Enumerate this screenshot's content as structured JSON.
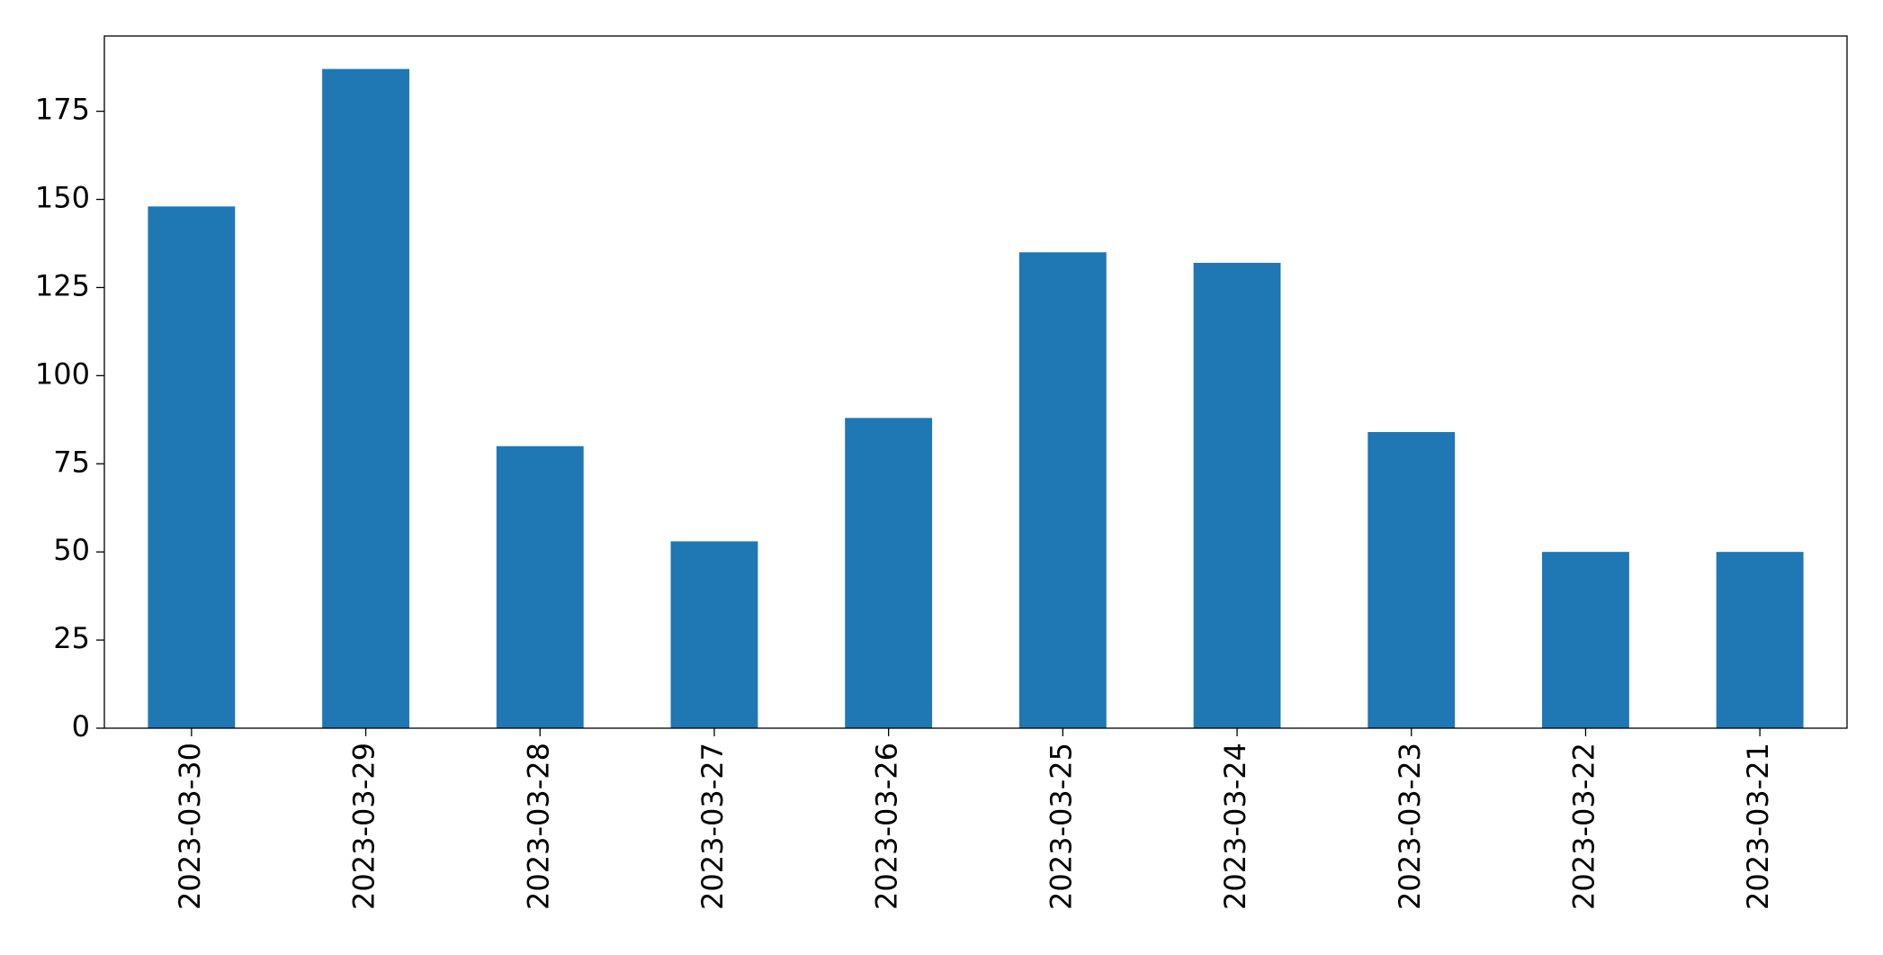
{
  "chart_data": {
    "type": "bar",
    "categories": [
      "2023-03-30",
      "2023-03-29",
      "2023-03-28",
      "2023-03-27",
      "2023-03-26",
      "2023-03-25",
      "2023-03-24",
      "2023-03-23",
      "2023-03-22",
      "2023-03-21"
    ],
    "values": [
      148,
      187,
      80,
      53,
      88,
      135,
      132,
      84,
      50,
      50
    ],
    "color": "#1f77b4",
    "ylim": [
      0,
      196.35
    ],
    "yticks": [
      0,
      25,
      50,
      75,
      100,
      125,
      150,
      175
    ],
    "grid": false
  }
}
